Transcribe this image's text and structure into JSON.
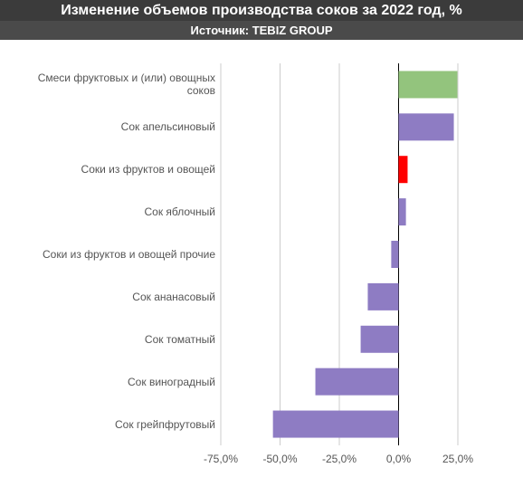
{
  "chart_data": {
    "type": "barh",
    "title": "Изменение объемов производства соков за 2022 год, %",
    "subtitle": "Источник: TEBIZ GROUP",
    "categories": [
      "Смеси фруктовых и (или) овощных соков",
      "Сок апельсиновый",
      "Соки из фруктов и овощей",
      "Сок яблочный",
      "Соки из фруктов и овощей прочие",
      "Сок ананасовый",
      "Сок томатный",
      "Сок виноградный",
      "Сок грейпфрутовый"
    ],
    "values": [
      24.8,
      23.3,
      3.8,
      3.1,
      -3.1,
      -13.0,
      -16.0,
      -35.1,
      -53.0
    ],
    "colors": [
      "#93c47d",
      "#8e7cc3",
      "#ff0000",
      "#8e7cc3",
      "#8e7cc3",
      "#8e7cc3",
      "#8e7cc3",
      "#8e7cc3",
      "#8e7cc3"
    ],
    "xlim": [
      -75,
      25
    ],
    "xticks": [
      {
        "value": -75,
        "label": "-75,0%"
      },
      {
        "value": -50,
        "label": "-50,0%"
      },
      {
        "value": -25,
        "label": "-25,0%"
      },
      {
        "value": 0,
        "label": "0,0%"
      },
      {
        "value": 25,
        "label": "25,0%"
      }
    ],
    "grid": true
  }
}
